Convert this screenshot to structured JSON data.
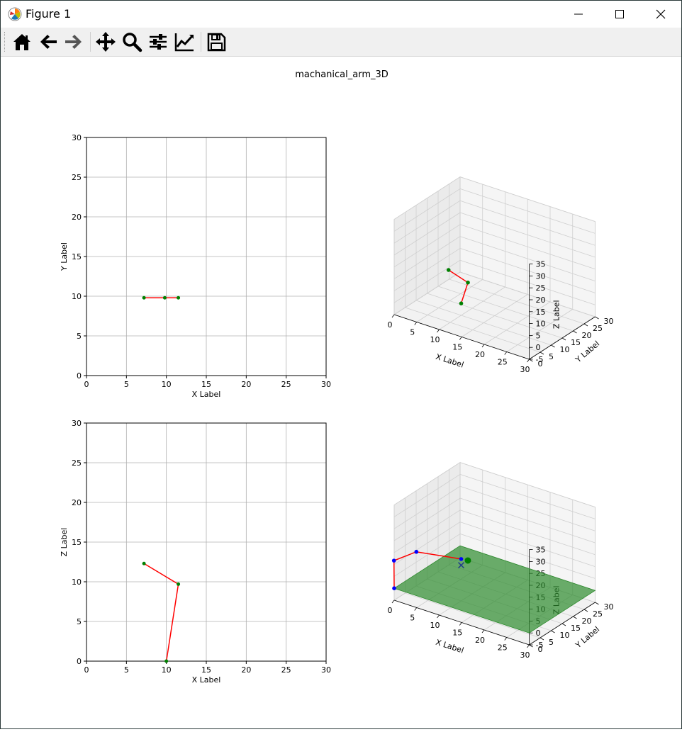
{
  "window": {
    "title": "Figure 1",
    "controls": [
      "minimize",
      "maximize",
      "close"
    ]
  },
  "toolbar": {
    "buttons": [
      "home-icon",
      "back-arrow-icon",
      "forward-arrow-icon",
      "pan-icon",
      "zoom-icon",
      "subplots-config-icon",
      "edit-axis-icon",
      "save-icon"
    ]
  },
  "figure": {
    "suptitle": "machanical_arm_3D"
  },
  "chart_data": [
    {
      "type": "line",
      "panel": "top-left",
      "xlabel": "X Label",
      "ylabel": "Y Label",
      "xlim": [
        0,
        30
      ],
      "ylim": [
        0,
        30
      ],
      "xticks": [
        "0",
        "5",
        "10",
        "15",
        "20",
        "25",
        "30"
      ],
      "yticks": [
        "0",
        "5",
        "10",
        "15",
        "20",
        "25",
        "30"
      ],
      "grid": true,
      "series": [
        {
          "x": [
            7.2,
            9.8,
            11.5
          ],
          "y": [
            9.8,
            9.8,
            9.8
          ],
          "color": "#ff0000",
          "marker_color": "#008000"
        }
      ]
    },
    {
      "type": "line",
      "panel": "bottom-left",
      "xlabel": "X Label",
      "ylabel": "Z Label",
      "xlim": [
        0,
        30
      ],
      "ylim": [
        0,
        30
      ],
      "xticks": [
        "0",
        "5",
        "10",
        "15",
        "20",
        "25",
        "30"
      ],
      "yticks": [
        "0",
        "5",
        "10",
        "15",
        "20",
        "25",
        "30"
      ],
      "grid": true,
      "series": [
        {
          "x": [
            7.2,
            11.5,
            10.0
          ],
          "y": [
            12.3,
            9.7,
            0.0
          ],
          "color": "#ff0000",
          "marker_color": "#008000"
        }
      ]
    },
    {
      "type": "line",
      "panel": "top-right-3d",
      "xlabel": "X Label",
      "ylabel": "Y Label",
      "zlabel": "Z Label",
      "xlim": [
        0,
        30
      ],
      "ylim": [
        0,
        30
      ],
      "zlim": [
        -5,
        35
      ],
      "xticks": [
        "0",
        "5",
        "10",
        "15",
        "20",
        "25",
        "30"
      ],
      "yticks": [
        "0",
        "5",
        "10",
        "15",
        "20",
        "25",
        "30"
      ],
      "zticks": [
        "-5",
        "0",
        "5",
        "10",
        "15",
        "20",
        "25",
        "30",
        "35"
      ],
      "series": [
        {
          "points": [
            [
              10,
              10,
              0
            ],
            [
              11.5,
              10,
              9.7
            ],
            [
              7.2,
              10,
              12.3
            ]
          ],
          "color": "#ff0000",
          "marker_color": "#008000"
        }
      ]
    },
    {
      "type": "line",
      "panel": "bottom-right-3d",
      "xlabel": "X Label",
      "ylabel": "Y Label",
      "zlabel": "Z Label",
      "xlim": [
        0,
        30
      ],
      "ylim": [
        0,
        30
      ],
      "zlim": [
        -5,
        35
      ],
      "xticks": [
        "0",
        "5",
        "10",
        "15",
        "20",
        "25",
        "30"
      ],
      "yticks": [
        "0",
        "5",
        "10",
        "15",
        "20",
        "25",
        "30"
      ],
      "zticks": [
        "-5",
        "0",
        "5",
        "10",
        "15",
        "20",
        "25",
        "30",
        "35"
      ],
      "plane_color": "#2e8b2e",
      "series": [
        {
          "points": [
            [
              0,
              0,
              0
            ],
            [
              -2,
              4,
              8
            ],
            [
              2,
              6,
              13
            ],
            [
              10,
              10,
              12.6
            ]
          ],
          "color": "#ff0000",
          "marker_color": "#0000ff"
        }
      ],
      "target_marker": {
        "point": [
          10,
          10,
          10
        ],
        "symbol": "x",
        "color": "#1f3b8a"
      },
      "end_marker": {
        "point": [
          11,
          11,
          12
        ],
        "color": "#008000"
      }
    }
  ]
}
